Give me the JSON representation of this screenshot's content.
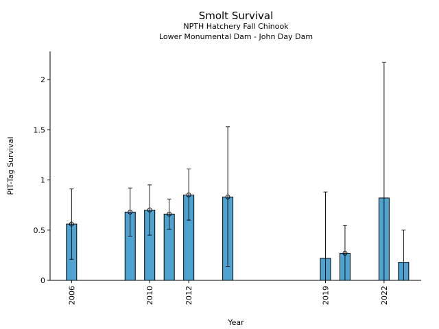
{
  "chart_data": {
    "type": "bar",
    "title": "Smolt Survival",
    "subtitle": "NPTH Hatchery Fall Chinook",
    "subtitle2": "Lower Monumental Dam - John Day Dam",
    "xlabel": "Year",
    "ylabel": "PIT-Tag Survival",
    "xlim": [
      2004.9,
      2023.9
    ],
    "ylim": [
      0,
      2.28
    ],
    "x_ticks": [
      2006,
      2010,
      2012,
      2019,
      2022
    ],
    "y_ticks": [
      0,
      0.5,
      1,
      1.5,
      2
    ],
    "y_tick_labels": [
      "0",
      "0.5",
      "1",
      "1.5",
      "2"
    ],
    "grid": false,
    "series": [
      {
        "x": [
          2006,
          2009,
          2010,
          2011,
          2012,
          2014,
          2019,
          2020,
          2022,
          2023
        ],
        "values": [
          0.56,
          0.68,
          0.7,
          0.66,
          0.85,
          0.83,
          0.22,
          0.27,
          0.82,
          0.18
        ],
        "lower": [
          0.21,
          0.44,
          0.45,
          0.51,
          0.6,
          0.14,
          null,
          null,
          null,
          null
        ],
        "upper": [
          0.91,
          0.92,
          0.95,
          0.81,
          1.11,
          1.53,
          0.88,
          0.55,
          2.17,
          0.5
        ],
        "marker": [
          true,
          true,
          true,
          true,
          true,
          true,
          false,
          true,
          false,
          false
        ]
      }
    ],
    "colors": {
      "bar": "#4ea3d1",
      "edge": "#000000"
    }
  }
}
